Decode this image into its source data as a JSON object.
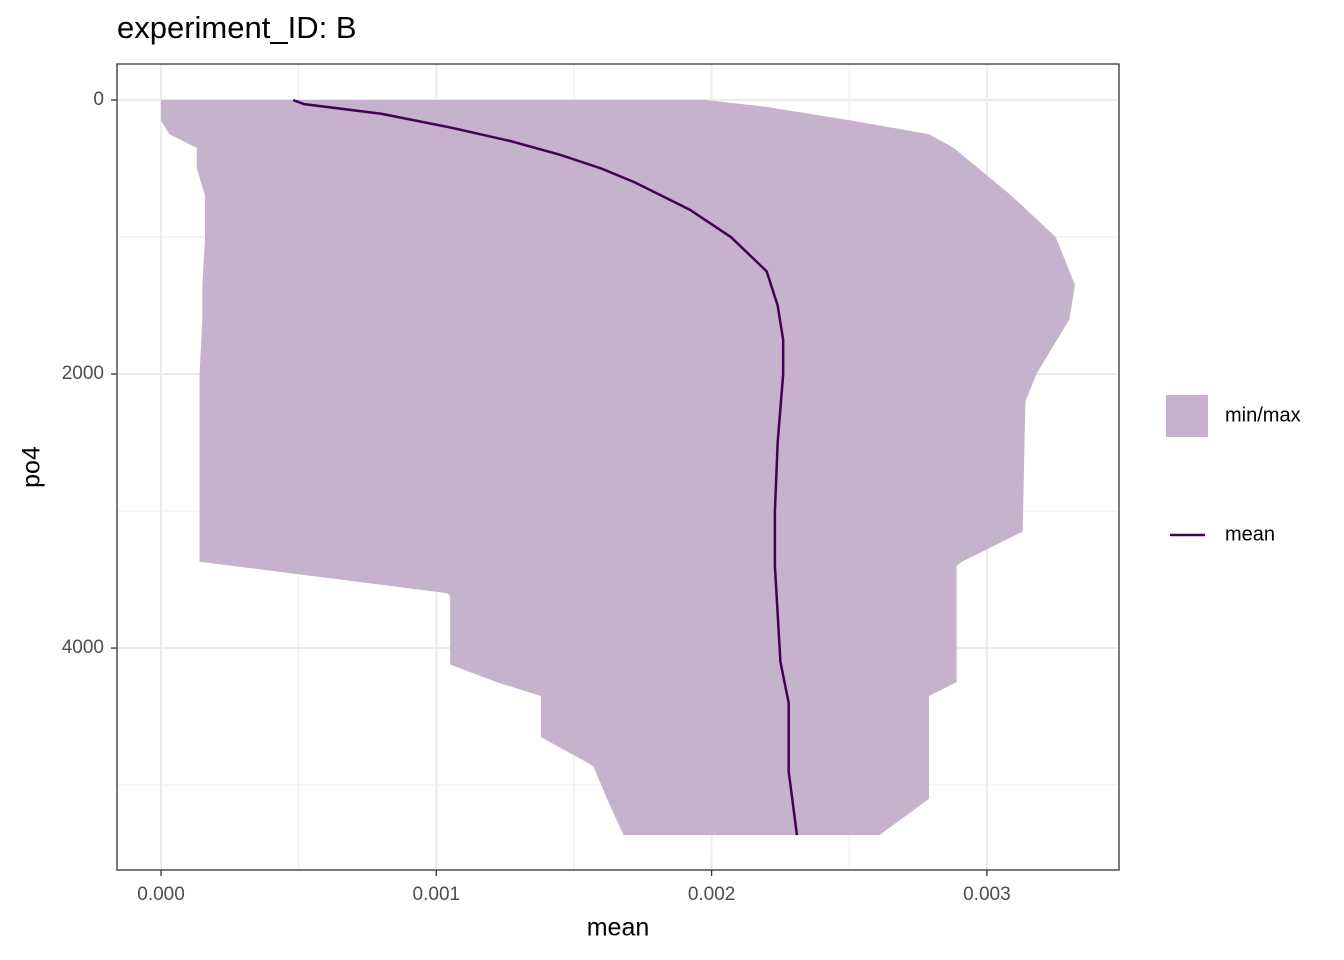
{
  "chart_data": {
    "type": "ribbon",
    "title": "experiment_ID: B",
    "x_label": "mean",
    "y_label": "po4",
    "xlim": [
      -0.00016,
      0.00348
    ],
    "ylim": [
      -263,
      5620
    ],
    "y_reverse": true,
    "grid": true,
    "legend": "right",
    "xticks": [
      {
        "value": 0,
        "label": "0.000"
      },
      {
        "value": 0.001,
        "label": "0.001"
      },
      {
        "value": 0.002,
        "label": "0.002"
      },
      {
        "value": 0.003,
        "label": "0.003"
      }
    ],
    "minor_xticks": [
      0.0005,
      0.0015,
      0.0025
    ],
    "yticks": [
      0,
      2000,
      4000
    ],
    "minor_yticks": [
      1000,
      3000,
      5000
    ],
    "series": [
      {
        "name": "min/max",
        "kind": "ribbon",
        "color": "#c6b2cc",
        "y": [
          0,
          50,
          150,
          250,
          350,
          500,
          700,
          1000,
          1350,
          1600,
          2000,
          2200,
          3150,
          3370,
          3400,
          3600,
          3620,
          4120,
          4250,
          4350,
          4650,
          4860,
          5100,
          5365
        ],
        "xmin": [
          0,
          0,
          0,
          3e-05,
          0.00013,
          0.00013,
          0.00016,
          0.00016,
          0.00015,
          0.00015,
          0.00014,
          0.00014,
          0.00014,
          0.00014,
          0.00026,
          0.00104,
          0.00105,
          0.00105,
          0.00122,
          0.00138,
          0.00138,
          0.00157,
          0.00162,
          0.00168
        ],
        "xmax": [
          0.00198,
          0.0022,
          0.00251,
          0.00279,
          0.00288,
          0.00297,
          0.00309,
          0.00325,
          0.00332,
          0.0033,
          0.00318,
          0.00314,
          0.00313,
          0.00291,
          0.00289,
          0.00289,
          0.00289,
          0.00289,
          0.00289,
          0.00279,
          0.00279,
          0.00279,
          0.00279,
          0.00261
        ]
      },
      {
        "name": "mean",
        "kind": "line",
        "color": "#440154",
        "y": [
          0,
          30,
          100,
          200,
          300,
          400,
          500,
          600,
          800,
          1000,
          1250,
          1500,
          1750,
          2000,
          2500,
          3000,
          3400,
          4100,
          4400,
          4900,
          5365
        ],
        "values": [
          0.00048,
          0.00052,
          0.0008,
          0.00105,
          0.00127,
          0.00145,
          0.0016,
          0.00172,
          0.00192,
          0.00207,
          0.0022,
          0.00224,
          0.00226,
          0.00226,
          0.00224,
          0.00223,
          0.00223,
          0.00225,
          0.00228,
          0.00228,
          0.00231
        ]
      }
    ]
  }
}
